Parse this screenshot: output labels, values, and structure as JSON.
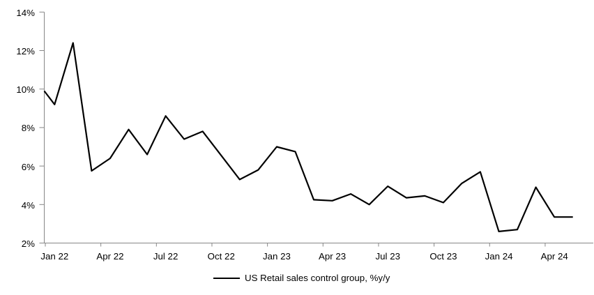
{
  "chart_data": {
    "type": "line",
    "title": "",
    "xlabel": "",
    "ylabel": "",
    "grid": "off",
    "ylim": [
      2,
      14
    ],
    "y_tick_step": 2,
    "y_tick_labels": [
      "14%",
      "12%",
      "10%",
      "8%",
      "6%",
      "4%",
      "2%"
    ],
    "x_tick_labels": [
      "Jan 22",
      "Apr 22",
      "Jul 22",
      "Oct 22",
      "Jan 23",
      "Apr 23",
      "Jul 23",
      "Oct 23",
      "Jan 24",
      "Apr 24"
    ],
    "x": [
      "Jan 22",
      "Feb 22",
      "Mar 22",
      "Apr 22",
      "May 22",
      "Jun 22",
      "Jul 22",
      "Aug 22",
      "Sep 22",
      "Oct 22",
      "Nov 22",
      "Dec 22",
      "Jan 23",
      "Feb 23",
      "Mar 23",
      "Apr 23",
      "May 23",
      "Jun 23",
      "Jul 23",
      "Aug 23",
      "Sep 23",
      "Oct 23",
      "Nov 23",
      "Dec 23",
      "Jan 24",
      "Feb 24",
      "Mar 24",
      "Apr 24",
      "May 24"
    ],
    "series": [
      {
        "name": "US Retail sales control group, %y/y",
        "color": "#000000",
        "axis_entry_value": 9.9,
        "values": [
          9.2,
          12.4,
          5.75,
          6.4,
          7.9,
          6.6,
          8.6,
          7.4,
          7.8,
          6.55,
          5.3,
          5.8,
          7.0,
          6.75,
          4.25,
          4.2,
          4.55,
          4.0,
          4.95,
          4.35,
          4.45,
          4.1,
          5.1,
          5.7,
          2.6,
          2.7,
          4.9,
          3.35,
          3.35
        ]
      }
    ],
    "legend": {
      "label": "US Retail sales control group, %y/y",
      "position": "bottom-center"
    },
    "colors": {
      "line": "#000000",
      "axis": "#868686",
      "background": "#ffffff"
    }
  }
}
